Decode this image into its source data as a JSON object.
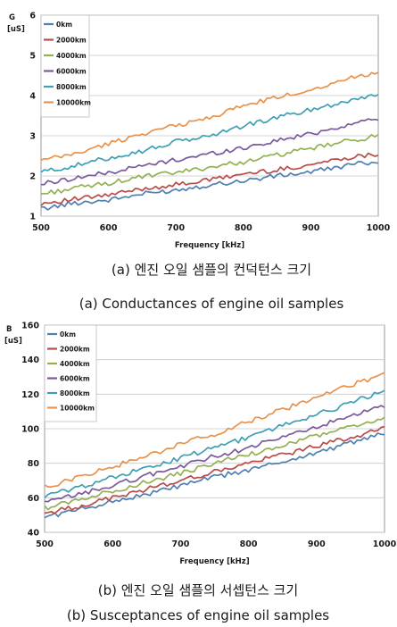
{
  "colors": {
    "0km": "#4f7fb3",
    "2000km": "#b84c4a",
    "4000km": "#93b153",
    "6000km": "#7a5a9c",
    "8000km": "#3e9fb5",
    "10000km": "#e8924b",
    "grid": "#c8c8c8",
    "frame": "#9a9a9a"
  },
  "captions": {
    "a_kr": "(a) 엔진 오일 샘플의 컨덕턴스 크기",
    "a_en": "(a) Conductances of engine oil samples",
    "b_kr": "(b) 엔진 오일 샘플의 서셉턴스 크기",
    "b_en": "(b) Susceptances of engine oil samples"
  },
  "chart_data": [
    {
      "type": "line",
      "ylabel_symbol": "G",
      "ylabel_unit": "[uS]",
      "xlabel": "Frequency [kHz]",
      "xlim": [
        500,
        1000
      ],
      "ylim": [
        1,
        6
      ],
      "xticks": [
        500,
        600,
        700,
        800,
        900,
        1000
      ],
      "yticks": [
        1,
        2,
        3,
        4,
        5,
        6
      ],
      "grid": "horizontal",
      "legend_position": "top-left",
      "x": [
        500,
        550,
        600,
        650,
        700,
        750,
        800,
        850,
        900,
        950,
        1000
      ],
      "series": [
        {
          "name": "0km",
          "values": [
            1.18,
            1.33,
            1.4,
            1.55,
            1.65,
            1.78,
            1.88,
            2.0,
            2.1,
            2.25,
            2.37
          ]
        },
        {
          "name": "2000km",
          "values": [
            1.32,
            1.42,
            1.52,
            1.68,
            1.78,
            1.9,
            2.05,
            2.15,
            2.28,
            2.45,
            2.55
          ]
        },
        {
          "name": "4000km",
          "values": [
            1.55,
            1.7,
            1.82,
            1.98,
            2.08,
            2.22,
            2.35,
            2.52,
            2.68,
            2.85,
            3.0
          ]
        },
        {
          "name": "6000km",
          "values": [
            1.8,
            1.95,
            2.08,
            2.25,
            2.4,
            2.55,
            2.7,
            2.88,
            3.05,
            3.25,
            3.45
          ]
        },
        {
          "name": "8000km",
          "values": [
            2.1,
            2.25,
            2.45,
            2.62,
            2.85,
            3.0,
            3.25,
            3.45,
            3.65,
            3.85,
            4.05
          ]
        },
        {
          "name": "10000km",
          "values": [
            2.38,
            2.55,
            2.8,
            3.05,
            3.25,
            3.45,
            3.75,
            3.95,
            4.15,
            4.4,
            4.6
          ]
        }
      ]
    },
    {
      "type": "line",
      "ylabel_symbol": "B",
      "ylabel_unit": "[uS]",
      "xlabel": "Frequency [kHz]",
      "xlim": [
        500,
        1000
      ],
      "ylim": [
        40,
        160
      ],
      "xticks": [
        500,
        600,
        700,
        800,
        900,
        1000
      ],
      "yticks": [
        40,
        60,
        80,
        100,
        120,
        140,
        160
      ],
      "grid": "horizontal",
      "legend_position": "top-left",
      "x": [
        500,
        550,
        600,
        650,
        700,
        750,
        800,
        850,
        900,
        950,
        1000
      ],
      "series": [
        {
          "name": "0km",
          "values": [
            49,
            53,
            58,
            62,
            67,
            72,
            76,
            81,
            86,
            92,
            97
          ]
        },
        {
          "name": "2000km",
          "values": [
            51,
            55,
            60,
            65,
            70,
            75,
            80,
            85,
            90,
            95,
            100
          ]
        },
        {
          "name": "4000km",
          "values": [
            54,
            59,
            64,
            69,
            74,
            80,
            85,
            90,
            96,
            101,
            106
          ]
        },
        {
          "name": "6000km",
          "values": [
            57,
            62,
            67,
            73,
            78,
            84,
            89,
            95,
            101,
            107,
            113
          ]
        },
        {
          "name": "8000km",
          "values": [
            61,
            66,
            72,
            77,
            83,
            89,
            95,
            102,
            108,
            115,
            122
          ]
        },
        {
          "name": "10000km",
          "values": [
            66,
            72,
            78,
            84,
            91,
            97,
            104,
            111,
            118,
            125,
            132
          ]
        }
      ]
    }
  ]
}
